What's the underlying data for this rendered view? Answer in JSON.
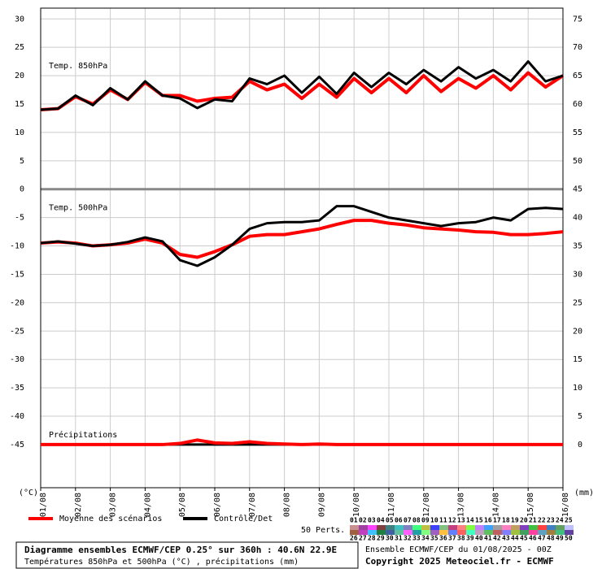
{
  "chart_data": {
    "type": "line",
    "title": "Diagramme ensembles ECMWF/CEP 0.25° sur 360h : 40.6N 22.9E",
    "subtitle": "Températures 850hPa et 500hPa (°C) , précipitations (mm)",
    "run_label": "Ensemble ECMWF/CEP du 01/08/2025 - 00Z",
    "copyright": "Copyright 2025 Meteociel.fr - ECMWF",
    "y_label": "(°C)",
    "y2_label": "(mm)",
    "annotations": [
      "Temp. 850hPa",
      "Temp. 500hPa",
      "Précipitations"
    ],
    "members_label": "50 Perts.",
    "grid": true,
    "x": [
      0,
      12,
      24,
      36,
      48,
      60,
      72,
      84,
      96,
      108,
      120,
      132,
      144,
      156,
      168,
      180,
      192,
      204,
      216,
      228,
      240,
      252,
      264,
      276,
      288,
      300,
      312,
      324,
      336,
      348,
      360
    ],
    "xlim": [
      0,
      360
    ],
    "xticks": [
      {
        "value": 0,
        "label": "01/08"
      },
      {
        "value": 24,
        "label": "02/08"
      },
      {
        "value": 48,
        "label": "03/08"
      },
      {
        "value": 72,
        "label": "04/08"
      },
      {
        "value": 96,
        "label": "05/08"
      },
      {
        "value": 120,
        "label": "06/08"
      },
      {
        "value": 144,
        "label": "07/08"
      },
      {
        "value": 168,
        "label": "08/08"
      },
      {
        "value": 192,
        "label": "09/08"
      },
      {
        "value": 216,
        "label": "10/08"
      },
      {
        "value": 240,
        "label": "11/08"
      },
      {
        "value": 264,
        "label": "12/08"
      },
      {
        "value": 288,
        "label": "13/08"
      },
      {
        "value": 312,
        "label": "14/08"
      },
      {
        "value": 336,
        "label": "15/08"
      },
      {
        "value": 360,
        "label": "16/08"
      }
    ],
    "ylim": [
      -52.6,
      31.9
    ],
    "yticks": [
      30,
      25,
      20,
      15,
      10,
      5,
      0,
      -5,
      -10,
      -15,
      -20,
      -25,
      -30,
      -35,
      -40,
      -45
    ],
    "y2lim": [
      -7.6,
      76.9
    ],
    "y2ticks": [
      75,
      70,
      65,
      60,
      55,
      50,
      45,
      40,
      35,
      30,
      25,
      20,
      15,
      10,
      5,
      0
    ],
    "series": [
      {
        "name": "Moyenne des scénarios",
        "color": "#ff0000",
        "values": [
          14,
          14.2,
          16.3,
          15,
          17.5,
          15.8,
          18.8,
          16.5,
          16.5,
          15.5,
          16,
          16.2,
          19,
          17.5,
          18.5,
          16,
          18.5,
          16.2,
          19.5,
          17,
          19.5,
          17,
          20,
          17.2,
          19.5,
          17.8,
          20,
          17.5,
          20.5,
          18,
          20
        ]
      },
      {
        "name": "Contrôle/Det",
        "color": "#000000",
        "values": [
          14,
          14.2,
          16.5,
          14.8,
          17.8,
          15.8,
          19,
          16.5,
          16,
          14.3,
          15.8,
          15.5,
          19.5,
          18.5,
          20,
          17,
          19.8,
          16.8,
          20.5,
          18,
          20.5,
          18.5,
          21,
          19,
          21.5,
          19.5,
          21,
          19,
          22.5,
          19,
          20
        ]
      },
      {
        "color": "#ff0000",
        "values": [
          -9.5,
          -9.3,
          -9.5,
          -10,
          -9.8,
          -9.5,
          -8.8,
          -9.5,
          -11.5,
          -12,
          -11,
          -9.8,
          -8.3,
          -8,
          -8,
          -7.5,
          -7,
          -6.2,
          -5.5,
          -5.5,
          -6,
          -6.3,
          -6.8,
          -7,
          -7.2,
          -7.5,
          -7.6,
          -8,
          -8,
          -7.8,
          -7.5
        ]
      },
      {
        "color": "#000000",
        "values": [
          -9.5,
          -9.2,
          -9.6,
          -10,
          -9.8,
          -9.3,
          -8.5,
          -9.2,
          -12.5,
          -13.5,
          -12,
          -9.8,
          -7,
          -6,
          -5.8,
          -5.8,
          -5.5,
          -3,
          -3,
          -4,
          -5,
          -5.5,
          -6,
          -6.5,
          -6,
          -5.8,
          -5,
          -5.5,
          -3.5,
          -3.3,
          -3.5
        ]
      },
      {
        "color": "#000000",
        "axis": "y2",
        "values": [
          0,
          0,
          0,
          0,
          0,
          0,
          0,
          0,
          0,
          0,
          0,
          0,
          0,
          0,
          0,
          0,
          0,
          0,
          0,
          0,
          0,
          0,
          0,
          0,
          0,
          0,
          0,
          0,
          0,
          0,
          0
        ]
      },
      {
        "color": "#ff0000",
        "axis": "y2",
        "values": [
          0,
          0,
          0,
          0,
          0,
          0,
          0,
          0,
          0.2,
          0.8,
          0.3,
          0.2,
          0.5,
          0.2,
          0.1,
          0,
          0.1,
          0,
          0,
          0,
          0,
          0,
          0,
          0,
          0,
          0,
          0,
          0,
          0,
          0,
          0
        ]
      }
    ],
    "members": [
      {
        "label": "01",
        "color": "#c89090"
      },
      {
        "label": "02",
        "color": "#a040a0"
      },
      {
        "label": "03",
        "color": "#ff40ff"
      },
      {
        "label": "04",
        "color": "#804040"
      },
      {
        "label": "05",
        "color": "#408080"
      },
      {
        "label": "06",
        "color": "#40c0c0"
      },
      {
        "label": "07",
        "color": "#8080c0"
      },
      {
        "label": "08",
        "color": "#40ff80"
      },
      {
        "label": "09",
        "color": "#c0c040"
      },
      {
        "label": "10",
        "color": "#4040ff"
      },
      {
        "label": "11",
        "color": "#80c080"
      },
      {
        "label": "12",
        "color": "#c04080"
      },
      {
        "label": "13",
        "color": "#ff8080"
      },
      {
        "label": "14",
        "color": "#80ff40"
      },
      {
        "label": "15",
        "color": "#c080ff"
      },
      {
        "label": "16",
        "color": "#40a0ff"
      },
      {
        "label": "17",
        "color": "#a0a0a0"
      },
      {
        "label": "18",
        "color": "#ff80c0"
      },
      {
        "label": "19",
        "color": "#c0a060"
      },
      {
        "label": "20",
        "color": "#8040c0"
      },
      {
        "label": "21",
        "color": "#40c040"
      },
      {
        "label": "22",
        "color": "#ff4040"
      },
      {
        "label": "23",
        "color": "#4080c0"
      },
      {
        "label": "24",
        "color": "#60a060"
      },
      {
        "label": "25",
        "color": "#c0c0ff"
      },
      {
        "label": "26",
        "color": "#a06040"
      },
      {
        "label": "27",
        "color": "#c040c0"
      },
      {
        "label": "28",
        "color": "#40c0ff"
      },
      {
        "label": "29",
        "color": "#208040"
      },
      {
        "label": "30",
        "color": "#4060a0"
      },
      {
        "label": "31",
        "color": "#60c0a0"
      },
      {
        "label": "32",
        "color": "#ff60ff"
      },
      {
        "label": "33",
        "color": "#20a0a0"
      },
      {
        "label": "34",
        "color": "#80ff80"
      },
      {
        "label": "35",
        "color": "#a060c0"
      },
      {
        "label": "36",
        "color": "#ffc040"
      },
      {
        "label": "37",
        "color": "#6080ff"
      },
      {
        "label": "38",
        "color": "#ff6060"
      },
      {
        "label": "39",
        "color": "#40ffc0"
      },
      {
        "label": "40",
        "color": "#c0a0c0"
      },
      {
        "label": "41",
        "color": "#60c060"
      },
      {
        "label": "42",
        "color": "#c06060"
      },
      {
        "label": "43",
        "color": "#8080ff"
      },
      {
        "label": "44",
        "color": "#a0c040"
      },
      {
        "label": "45",
        "color": "#40a060"
      },
      {
        "label": "46",
        "color": "#ff40a0"
      },
      {
        "label": "47",
        "color": "#60a0c0"
      },
      {
        "label": "48",
        "color": "#a08040"
      },
      {
        "label": "49",
        "color": "#40c080"
      },
      {
        "label": "50",
        "color": "#6040a0"
      }
    ]
  }
}
